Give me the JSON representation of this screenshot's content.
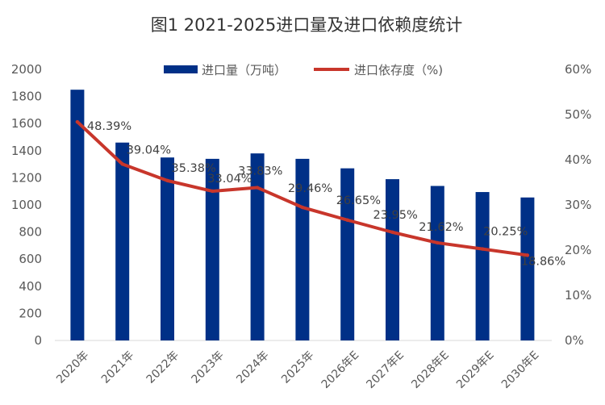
{
  "chart_data": {
    "type": "bar+line",
    "title": "图1 2021-2025进口量及进口依赖度统计",
    "categories": [
      "2020年",
      "2021年",
      "2022年",
      "2023年",
      "2024年",
      "2025年",
      "2026年E",
      "2027年E",
      "2028年E",
      "2029年E",
      "2030年E"
    ],
    "series": [
      {
        "name": "进口量（万吨）",
        "type": "bar",
        "axis": "left",
        "color": "#003087",
        "values": [
          1850,
          1460,
          1350,
          1340,
          1380,
          1340,
          1270,
          1190,
          1140,
          1095,
          1055
        ]
      },
      {
        "name": "进口依存度（%)",
        "type": "line",
        "axis": "right",
        "color": "#C8362B",
        "values": [
          48.39,
          39.04,
          35.38,
          33.04,
          33.83,
          29.46,
          26.65,
          23.95,
          21.62,
          20.25,
          18.86
        ],
        "data_labels": [
          "48.39%",
          "39.04%",
          "35.38%",
          "33.04%",
          "33.83%",
          "29.46%",
          "26.65%",
          "23.95%",
          "21.62%",
          "20.25%",
          "18.86%"
        ]
      }
    ],
    "y_left": {
      "min": 0,
      "max": 2000,
      "step": 200,
      "ticks": [
        "0",
        "200",
        "400",
        "600",
        "800",
        "1000",
        "1200",
        "1400",
        "1600",
        "1800",
        "2000"
      ]
    },
    "y_right": {
      "min": 0,
      "max": 60,
      "step": 10,
      "ticks": [
        "0%",
        "10%",
        "20%",
        "30%",
        "40%",
        "50%",
        "60%"
      ]
    },
    "legend": {
      "position": "top-center",
      "items": [
        "进口量（万吨）",
        "进口依存度（%)"
      ]
    },
    "grid": false
  }
}
